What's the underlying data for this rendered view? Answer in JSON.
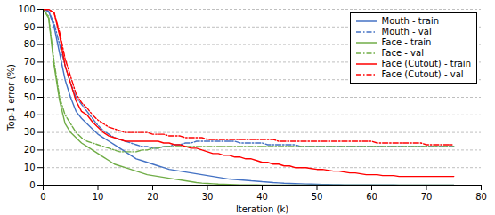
{
  "chart_data": {
    "type": "line",
    "title": "",
    "xlabel": "Iteration (k)",
    "ylabel": "Top-1 error (%)",
    "xlim": [
      0,
      80
    ],
    "ylim": [
      0,
      100
    ],
    "xticks": [
      0,
      10,
      20,
      30,
      40,
      50,
      60,
      70,
      80
    ],
    "yticks": [
      0,
      10,
      20,
      30,
      40,
      50,
      60,
      70,
      80,
      90,
      100
    ],
    "grid": "y",
    "legend": "upper right",
    "x": [
      0,
      1,
      2,
      3,
      4,
      5,
      6,
      7,
      8,
      9,
      10,
      11,
      12,
      13,
      14,
      15,
      16,
      17,
      18,
      19,
      20,
      21,
      22,
      23,
      24,
      25,
      26,
      27,
      28,
      29,
      30,
      31,
      32,
      33,
      34,
      35,
      36,
      37,
      38,
      39,
      40,
      41,
      42,
      43,
      44,
      45,
      46,
      47,
      48,
      49,
      50,
      51,
      52,
      53,
      54,
      55,
      56,
      57,
      58,
      59,
      60,
      61,
      62,
      63,
      64,
      65,
      66,
      67,
      68,
      69,
      70,
      71,
      72,
      73,
      74,
      75
    ],
    "series": [
      {
        "name": "Mouth - train",
        "color": "#4472C4",
        "line_style": "solid",
        "values": [
          100,
          99,
          90,
          75,
          60,
          50,
          42,
          38,
          35,
          32,
          29,
          27,
          25,
          23,
          21,
          19,
          17,
          15,
          14,
          13,
          12,
          11,
          10,
          9,
          8.5,
          8,
          7.5,
          7,
          6.5,
          6,
          5.5,
          5,
          4.5,
          4,
          3.5,
          3.2,
          3,
          2.8,
          2.5,
          2.3,
          2,
          1.8,
          1.5,
          1.3,
          1.1,
          1,
          0.9,
          0.8,
          0.7,
          0.6,
          0.5,
          0.4,
          0.4,
          0.3,
          0.3,
          0.2,
          0.2,
          0.2,
          0.1,
          0.1,
          0.1,
          0.1,
          0.1,
          0.1,
          0.1,
          0.0,
          0.0,
          0.0,
          0.0,
          0.0,
          0.0,
          0.0,
          0.0,
          0.0,
          0.0,
          0.0
        ]
      },
      {
        "name": "Mouth - val",
        "color": "#4472C4",
        "line_style": "dashdot",
        "values": [
          100,
          99,
          92,
          80,
          68,
          58,
          50,
          46,
          42,
          38,
          34,
          31,
          29,
          27,
          26,
          25,
          24,
          23,
          22,
          22,
          21,
          21,
          22,
          22,
          23,
          23,
          24,
          24,
          25,
          25,
          25,
          25,
          25,
          25,
          25,
          25,
          24,
          24,
          24,
          24,
          24,
          23,
          23,
          23,
          23,
          23,
          23,
          22,
          22,
          22,
          22,
          22,
          22,
          22,
          22,
          22,
          22,
          22,
          22,
          22,
          22,
          22,
          22,
          22,
          22,
          22,
          22,
          22,
          22,
          22,
          22,
          22,
          22,
          22,
          22,
          22
        ]
      },
      {
        "name": "Face - train",
        "color": "#70AD47",
        "line_style": "solid",
        "values": [
          100,
          95,
          68,
          48,
          35,
          30,
          27,
          24,
          22,
          20,
          18,
          16,
          14,
          12,
          11,
          10,
          9,
          8,
          7,
          6,
          5.5,
          5,
          4.5,
          4,
          3.5,
          3,
          2.5,
          2,
          1.5,
          1.2,
          1,
          0.8,
          0.6,
          0.5,
          0.4,
          0.3,
          0.2,
          0.2,
          0.1,
          0.1,
          0.0,
          0.0,
          0.0,
          0.0,
          0.0,
          0.0,
          0.0,
          0.0,
          0.0,
          0.0,
          0.0,
          0.0,
          0.0,
          0.0,
          0.0,
          0.0,
          0.0,
          0.0,
          0.0,
          0.0,
          0.0,
          0.0,
          0.0,
          0.0,
          0.0,
          0.0,
          0.0,
          0.0,
          0.0,
          0.0,
          0.0,
          0.0,
          0.0,
          0.0,
          0.0,
          0.0
        ]
      },
      {
        "name": "Face - val",
        "color": "#70AD47",
        "line_style": "dashdot",
        "values": [
          100,
          96,
          70,
          50,
          40,
          35,
          30,
          27,
          25,
          24,
          23,
          22,
          21,
          20,
          19,
          19,
          19,
          19,
          20,
          20,
          21,
          21,
          22,
          22,
          22,
          22,
          22,
          22,
          22,
          22,
          22,
          22,
          22,
          22,
          22,
          22,
          22,
          22,
          22,
          22,
          22,
          22,
          22,
          22,
          22,
          22,
          22,
          22,
          22,
          22,
          22,
          22,
          22,
          22,
          22,
          22,
          22,
          22,
          22,
          22,
          22,
          22,
          22,
          22,
          22,
          22,
          22,
          22,
          22,
          22,
          22,
          22,
          22,
          22,
          22,
          22
        ]
      },
      {
        "name": "Face (Cutout) - train",
        "color": "#FF0000",
        "line_style": "solid",
        "values": [
          100,
          100,
          98,
          85,
          68,
          58,
          48,
          42,
          40,
          36,
          33,
          30,
          28,
          27,
          26,
          25,
          25,
          25,
          25,
          25,
          25,
          25,
          24,
          24,
          23,
          23,
          22,
          21,
          21,
          20,
          19,
          18,
          18,
          17,
          17,
          16,
          16,
          15,
          15,
          14,
          13,
          13,
          12,
          12,
          11,
          11,
          10,
          10,
          10,
          9.5,
          9,
          9,
          8.5,
          8,
          8,
          7.5,
          7,
          7,
          6.5,
          6,
          6,
          6,
          5.5,
          5.5,
          5.5,
          5,
          5,
          5,
          5,
          5,
          5,
          5,
          5,
          5,
          5,
          5
        ]
      },
      {
        "name": "Face (Cutout) - val",
        "color": "#FF0000",
        "line_style": "dashdot",
        "values": [
          100,
          100,
          98,
          87,
          72,
          62,
          52,
          47,
          44,
          40,
          37,
          35,
          33,
          32,
          31,
          30,
          30,
          30,
          30,
          30,
          29,
          29,
          29,
          28,
          28,
          28,
          27,
          27,
          27,
          27,
          26,
          26,
          26,
          26,
          26,
          26,
          26,
          26,
          26,
          26,
          26,
          26,
          26,
          25,
          25,
          25,
          25,
          25,
          25,
          25,
          25,
          25,
          25,
          25,
          25,
          25,
          25,
          25,
          25,
          25,
          25,
          24,
          24,
          24,
          24,
          24,
          24,
          24,
          24,
          24,
          23,
          23,
          23,
          23,
          23,
          23
        ]
      }
    ]
  }
}
